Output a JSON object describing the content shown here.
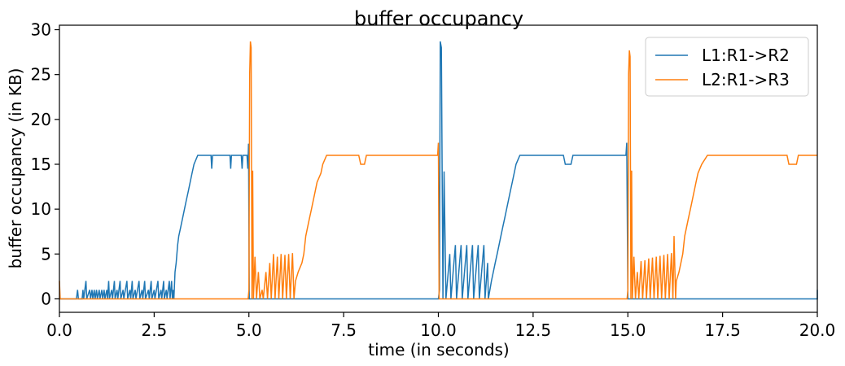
{
  "chart_data": {
    "type": "line",
    "title": "buffer occupancy",
    "xlabel": "time (in seconds)",
    "ylabel": "buffer occupancy (in KB)",
    "xlim": [
      0,
      20
    ],
    "ylim": [
      -1.5,
      30.5
    ],
    "x_ticks": [
      0,
      2.5,
      5,
      7.5,
      10,
      12.5,
      15,
      17.5,
      20
    ],
    "x_tick_labels": [
      "0.0",
      "2.5",
      "5.0",
      "7.5",
      "10.0",
      "12.5",
      "15.0",
      "17.5",
      "20.0"
    ],
    "y_ticks": [
      0,
      5,
      10,
      15,
      20,
      25,
      30
    ],
    "y_tick_labels": [
      "0",
      "5",
      "10",
      "15",
      "20",
      "25",
      "30"
    ],
    "grid": false,
    "legend_position": "top-right",
    "series": [
      {
        "name": "L1:R1->R2",
        "color": "#1f77b4",
        "points": [
          [
            0.0,
            0
          ],
          [
            0.45,
            0
          ],
          [
            0.48,
            1
          ],
          [
            0.5,
            0
          ],
          [
            0.6,
            0
          ],
          [
            0.62,
            1
          ],
          [
            0.64,
            0
          ],
          [
            0.7,
            2
          ],
          [
            0.72,
            0
          ],
          [
            0.8,
            1
          ],
          [
            0.82,
            0
          ],
          [
            0.86,
            1
          ],
          [
            0.88,
            0
          ],
          [
            0.92,
            1
          ],
          [
            0.94,
            0
          ],
          [
            0.98,
            1
          ],
          [
            1.0,
            0
          ],
          [
            1.05,
            1
          ],
          [
            1.07,
            0
          ],
          [
            1.12,
            1
          ],
          [
            1.14,
            0
          ],
          [
            1.18,
            1
          ],
          [
            1.2,
            0
          ],
          [
            1.25,
            1
          ],
          [
            1.27,
            0
          ],
          [
            1.3,
            2
          ],
          [
            1.32,
            0
          ],
          [
            1.38,
            1
          ],
          [
            1.4,
            0
          ],
          [
            1.45,
            2
          ],
          [
            1.47,
            0
          ],
          [
            1.52,
            1
          ],
          [
            1.54,
            0
          ],
          [
            1.6,
            2
          ],
          [
            1.62,
            0
          ],
          [
            1.68,
            1
          ],
          [
            1.7,
            0
          ],
          [
            1.78,
            2
          ],
          [
            1.8,
            0
          ],
          [
            1.86,
            1
          ],
          [
            1.88,
            0
          ],
          [
            1.92,
            2
          ],
          [
            1.94,
            0
          ],
          [
            2.0,
            1
          ],
          [
            2.02,
            0
          ],
          [
            2.1,
            2
          ],
          [
            2.12,
            0
          ],
          [
            2.18,
            1
          ],
          [
            2.2,
            0
          ],
          [
            2.25,
            2
          ],
          [
            2.27,
            0
          ],
          [
            2.35,
            1
          ],
          [
            2.37,
            0
          ],
          [
            2.42,
            2
          ],
          [
            2.44,
            0
          ],
          [
            2.5,
            1
          ],
          [
            2.52,
            0
          ],
          [
            2.6,
            2
          ],
          [
            2.62,
            0
          ],
          [
            2.68,
            1
          ],
          [
            2.7,
            0
          ],
          [
            2.75,
            2
          ],
          [
            2.77,
            0
          ],
          [
            2.82,
            1
          ],
          [
            2.84,
            0
          ],
          [
            2.9,
            2
          ],
          [
            2.92,
            0
          ],
          [
            2.96,
            2
          ],
          [
            2.98,
            0
          ],
          [
            3.0,
            1
          ],
          [
            3.02,
            0
          ],
          [
            3.05,
            3
          ],
          [
            3.08,
            4
          ],
          [
            3.1,
            5
          ],
          [
            3.12,
            6
          ],
          [
            3.15,
            7
          ],
          [
            3.2,
            8
          ],
          [
            3.25,
            9
          ],
          [
            3.3,
            10
          ],
          [
            3.35,
            11
          ],
          [
            3.4,
            12
          ],
          [
            3.45,
            13
          ],
          [
            3.5,
            14
          ],
          [
            3.55,
            15
          ],
          [
            3.65,
            16
          ],
          [
            4.0,
            16
          ],
          [
            4.02,
            14.5
          ],
          [
            4.04,
            16
          ],
          [
            4.5,
            16
          ],
          [
            4.52,
            14.5
          ],
          [
            4.54,
            16
          ],
          [
            4.8,
            16
          ],
          [
            4.82,
            14.5
          ],
          [
            4.84,
            16
          ],
          [
            4.95,
            16
          ],
          [
            4.97,
            14.5
          ],
          [
            4.99,
            17.3
          ],
          [
            5.01,
            0
          ],
          [
            10.0,
            0
          ],
          [
            10.03,
            1
          ],
          [
            10.05,
            28.7
          ],
          [
            10.08,
            28
          ],
          [
            10.12,
            0
          ],
          [
            10.15,
            14.2
          ],
          [
            10.2,
            0
          ],
          [
            10.3,
            5
          ],
          [
            10.33,
            0
          ],
          [
            10.45,
            6
          ],
          [
            10.48,
            0
          ],
          [
            10.6,
            6
          ],
          [
            10.63,
            0
          ],
          [
            10.75,
            6
          ],
          [
            10.78,
            0
          ],
          [
            10.9,
            6
          ],
          [
            10.93,
            0
          ],
          [
            11.05,
            6
          ],
          [
            11.08,
            0
          ],
          [
            11.2,
            6
          ],
          [
            11.23,
            0
          ],
          [
            11.3,
            4
          ],
          [
            11.32,
            0
          ],
          [
            11.4,
            2
          ],
          [
            11.45,
            3
          ],
          [
            11.5,
            4
          ],
          [
            11.55,
            5
          ],
          [
            11.6,
            6
          ],
          [
            11.65,
            7
          ],
          [
            11.7,
            8
          ],
          [
            11.75,
            9
          ],
          [
            11.8,
            10
          ],
          [
            11.85,
            11
          ],
          [
            11.9,
            12
          ],
          [
            11.95,
            13
          ],
          [
            12.0,
            14
          ],
          [
            12.05,
            15
          ],
          [
            12.15,
            16
          ],
          [
            13.3,
            16
          ],
          [
            13.35,
            15
          ],
          [
            13.5,
            15
          ],
          [
            13.55,
            16
          ],
          [
            14.95,
            16
          ],
          [
            14.97,
            17.4
          ],
          [
            15.0,
            0
          ],
          [
            20.0,
            0
          ],
          [
            20.0,
            1
          ]
        ]
      },
      {
        "name": "L2:R1->R3",
        "color": "#ff7f0e",
        "points": [
          [
            0.0,
            2
          ],
          [
            0.02,
            0
          ],
          [
            4.98,
            0
          ],
          [
            5.0,
            1
          ],
          [
            5.02,
            25
          ],
          [
            5.04,
            28.7
          ],
          [
            5.06,
            28
          ],
          [
            5.08,
            0
          ],
          [
            5.1,
            14.3
          ],
          [
            5.12,
            0
          ],
          [
            5.16,
            4.7
          ],
          [
            5.2,
            0
          ],
          [
            5.25,
            3
          ],
          [
            5.29,
            0
          ],
          [
            5.35,
            1
          ],
          [
            5.38,
            0
          ],
          [
            5.45,
            3
          ],
          [
            5.49,
            0
          ],
          [
            5.55,
            4
          ],
          [
            5.59,
            0
          ],
          [
            5.65,
            5
          ],
          [
            5.69,
            0
          ],
          [
            5.75,
            4.7
          ],
          [
            5.79,
            0
          ],
          [
            5.85,
            5
          ],
          [
            5.89,
            0
          ],
          [
            5.95,
            4.9
          ],
          [
            5.99,
            0
          ],
          [
            6.05,
            5
          ],
          [
            6.09,
            0
          ],
          [
            6.15,
            5.1
          ],
          [
            6.19,
            0
          ],
          [
            6.23,
            2
          ],
          [
            6.3,
            3
          ],
          [
            6.4,
            4
          ],
          [
            6.45,
            5
          ],
          [
            6.5,
            7
          ],
          [
            6.55,
            8
          ],
          [
            6.6,
            9
          ],
          [
            6.65,
            10
          ],
          [
            6.7,
            11
          ],
          [
            6.75,
            12
          ],
          [
            6.8,
            13
          ],
          [
            6.9,
            14
          ],
          [
            6.95,
            15
          ],
          [
            7.05,
            16
          ],
          [
            7.9,
            16
          ],
          [
            7.95,
            15
          ],
          [
            8.05,
            15
          ],
          [
            8.1,
            16
          ],
          [
            9.98,
            16
          ],
          [
            10.0,
            17.4
          ],
          [
            10.02,
            0
          ],
          [
            14.98,
            0
          ],
          [
            15.0,
            1
          ],
          [
            15.02,
            25
          ],
          [
            15.04,
            27.7
          ],
          [
            15.06,
            27
          ],
          [
            15.08,
            0
          ],
          [
            15.1,
            14.3
          ],
          [
            15.12,
            0
          ],
          [
            15.16,
            4.7
          ],
          [
            15.2,
            0
          ],
          [
            15.25,
            3
          ],
          [
            15.29,
            0
          ],
          [
            15.35,
            4.2
          ],
          [
            15.39,
            0
          ],
          [
            15.45,
            4.3
          ],
          [
            15.49,
            0
          ],
          [
            15.55,
            4.5
          ],
          [
            15.59,
            0
          ],
          [
            15.65,
            4.6
          ],
          [
            15.69,
            0
          ],
          [
            15.75,
            4.7
          ],
          [
            15.79,
            0
          ],
          [
            15.85,
            4.8
          ],
          [
            15.89,
            0
          ],
          [
            15.95,
            4.9
          ],
          [
            15.99,
            0
          ],
          [
            16.05,
            5.0
          ],
          [
            16.09,
            0
          ],
          [
            16.15,
            5.1
          ],
          [
            16.19,
            0
          ],
          [
            16.22,
            7
          ],
          [
            16.26,
            0
          ],
          [
            16.28,
            2
          ],
          [
            16.35,
            3
          ],
          [
            16.4,
            4
          ],
          [
            16.45,
            5
          ],
          [
            16.5,
            7
          ],
          [
            16.55,
            8
          ],
          [
            16.6,
            9
          ],
          [
            16.65,
            10
          ],
          [
            16.7,
            11
          ],
          [
            16.75,
            12
          ],
          [
            16.8,
            13
          ],
          [
            16.85,
            14
          ],
          [
            16.95,
            15
          ],
          [
            17.1,
            16
          ],
          [
            19.2,
            16
          ],
          [
            19.25,
            15
          ],
          [
            19.45,
            15
          ],
          [
            19.5,
            16
          ],
          [
            20.0,
            16
          ]
        ]
      }
    ]
  }
}
